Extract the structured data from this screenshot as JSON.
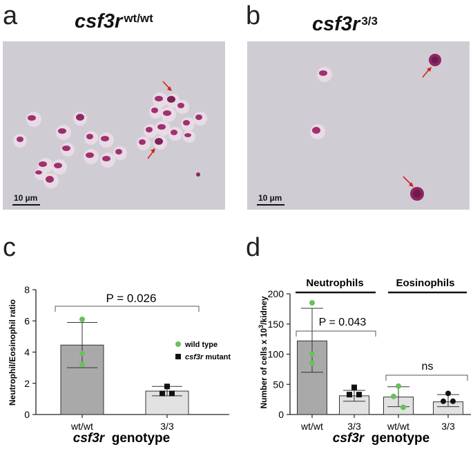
{
  "panels": {
    "a": {
      "letter": "a",
      "gene": "csf3r",
      "genotype_sup": "wt/wt",
      "scale_bar": "10 µm"
    },
    "b": {
      "letter": "b",
      "gene": "csf3r",
      "genotype_sup": "3/3",
      "scale_bar": "10 µm"
    },
    "c": {
      "letter": "c"
    },
    "d": {
      "letter": "d"
    }
  },
  "chart_data": [
    {
      "id": "c",
      "type": "bar",
      "categories": [
        "wt/wt",
        "3/3"
      ],
      "values": [
        4.45,
        1.5
      ],
      "error_low": [
        3.0,
        1.2
      ],
      "error_high": [
        5.9,
        1.8
      ],
      "bar_colors": [
        "#a9a9a9",
        "#e2e2e2"
      ],
      "points": [
        [
          6.1,
          3.9,
          3.2
        ],
        [
          1.8,
          1.35,
          1.35
        ]
      ],
      "point_colors": [
        "#6abf5e",
        "#111111"
      ],
      "point_shapes": [
        "circle",
        "square"
      ],
      "ylabel": "Neutrophil/Eosinophil ratio",
      "xlabel_italic": "csf3r",
      "xlabel_rest": "genotype",
      "ylim": [
        0,
        8
      ],
      "yticks": [
        0,
        2,
        4,
        6,
        8
      ],
      "annotation": "P = 0.026",
      "legend": [
        {
          "label": "wild type",
          "shape": "circle",
          "color": "#6abf5e"
        },
        {
          "label_italic": "csf3r",
          "label": " mutant",
          "shape": "square",
          "color": "#111111"
        }
      ]
    },
    {
      "id": "d",
      "type": "bar",
      "categories": [
        "wt/wt",
        "3/3",
        "wt/wt",
        "3/3"
      ],
      "groups": [
        "Neutrophils",
        "Eosinophils"
      ],
      "values": [
        122,
        31,
        29,
        21
      ],
      "error_low": [
        70,
        22,
        13,
        13
      ],
      "error_high": [
        176,
        40,
        46,
        33
      ],
      "bar_colors": [
        "#a9a9a9",
        "#e2e2e2",
        "#e2e2e2",
        "#e2e2e2"
      ],
      "points": [
        [
          185,
          100,
          85
        ],
        [
          45,
          33,
          33
        ],
        [
          47,
          30,
          12
        ],
        [
          35,
          22,
          22
        ]
      ],
      "point_colors": [
        "#6abf5e",
        "#111111",
        "#6abf5e",
        "#111111"
      ],
      "point_shapes": [
        "circle",
        "square",
        "circle",
        "circle"
      ],
      "ylabel": "Number of cells x 10",
      "ylabel_sup": "3",
      "ylabel_end": "/kidney",
      "xlabel_italic": "csf3r",
      "xlabel_rest": "genotype",
      "ylim": [
        0,
        200
      ],
      "yticks": [
        0,
        50,
        100,
        150,
        200
      ],
      "annotations": [
        "P = 0.043",
        "ns"
      ]
    }
  ]
}
